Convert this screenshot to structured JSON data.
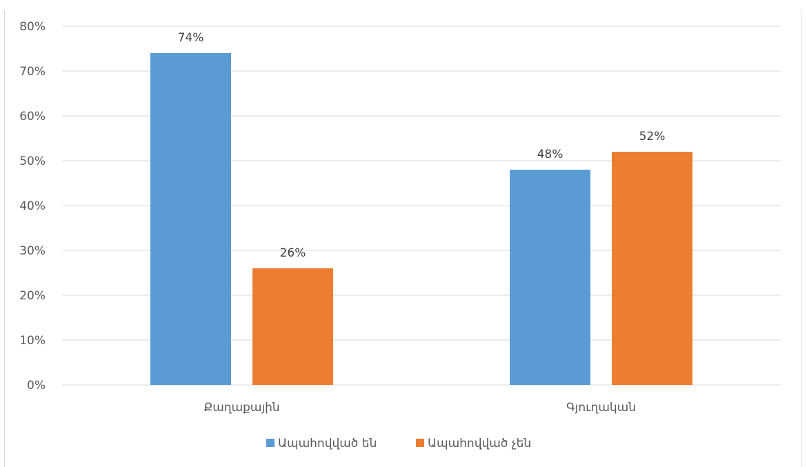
{
  "chart_data": {
    "type": "bar",
    "title": "",
    "categories": [
      "Քաղաքային",
      "Գյուղական"
    ],
    "series": [
      {
        "name": "Ապահովված են",
        "values": [
          74,
          48
        ],
        "color": "#5b9bd5"
      },
      {
        "name": "Ապահովված չեն",
        "values": [
          26,
          52
        ],
        "color": "#ed7d31"
      }
    ],
    "data_labels": [
      [
        "74%",
        "48%"
      ],
      [
        "26%",
        "52%"
      ]
    ],
    "ylim": [
      0,
      80
    ],
    "yticks": [
      "0%",
      "10%",
      "20%",
      "30%",
      "40%",
      "50%",
      "60%",
      "70%",
      "80%"
    ],
    "grid": true,
    "legend_position": "bottom"
  }
}
